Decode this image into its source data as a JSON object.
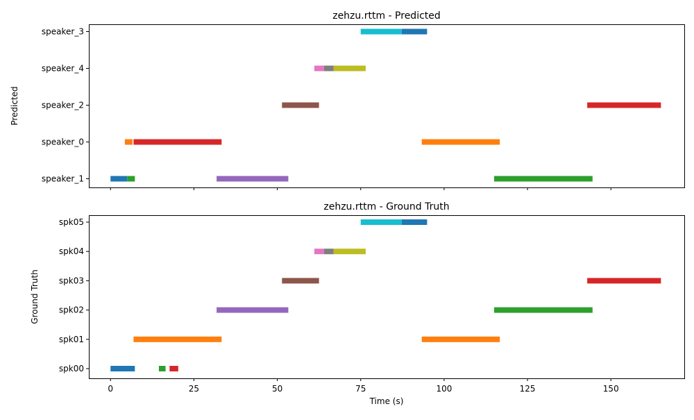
{
  "chart_data": [
    {
      "type": "timeline",
      "title": "zehzu.rttm - Predicted",
      "ylabel": "Predicted",
      "xlabel": "",
      "xlim": [
        -6.5,
        172
      ],
      "xticks": [
        0,
        25,
        50,
        75,
        100,
        125,
        150
      ],
      "show_xtick_labels": false,
      "grid": false,
      "rows": [
        "speaker_1",
        "speaker_0",
        "speaker_2",
        "speaker_4",
        "speaker_3"
      ],
      "segments": [
        {
          "row": "speaker_1",
          "start": 0.0,
          "end": 5.0,
          "color": "#1f77b4"
        },
        {
          "row": "speaker_1",
          "start": 5.0,
          "end": 7.3,
          "color": "#2ca02c"
        },
        {
          "row": "speaker_1",
          "start": 31.8,
          "end": 53.3,
          "color": "#9467bd"
        },
        {
          "row": "speaker_1",
          "start": 115.0,
          "end": 144.5,
          "color": "#2ca02c"
        },
        {
          "row": "speaker_0",
          "start": 4.3,
          "end": 6.6,
          "color": "#ff7f0e"
        },
        {
          "row": "speaker_0",
          "start": 6.9,
          "end": 33.3,
          "color": "#d62728"
        },
        {
          "row": "speaker_0",
          "start": 93.3,
          "end": 116.7,
          "color": "#ff7f0e"
        },
        {
          "row": "speaker_2",
          "start": 51.4,
          "end": 62.5,
          "color": "#8c564b"
        },
        {
          "row": "speaker_2",
          "start": 142.9,
          "end": 165.0,
          "color": "#d62728"
        },
        {
          "row": "speaker_4",
          "start": 61.1,
          "end": 64.0,
          "color": "#e377c2"
        },
        {
          "row": "speaker_4",
          "start": 64.0,
          "end": 66.9,
          "color": "#7f7f7f"
        },
        {
          "row": "speaker_4",
          "start": 66.9,
          "end": 76.5,
          "color": "#bcbd22"
        },
        {
          "row": "speaker_3",
          "start": 75.0,
          "end": 87.3,
          "color": "#17becf"
        },
        {
          "row": "speaker_3",
          "start": 87.3,
          "end": 94.9,
          "color": "#1f77b4"
        }
      ]
    },
    {
      "type": "timeline",
      "title": "zehzu.rttm - Ground Truth",
      "ylabel": "Ground Truth",
      "xlabel": "Time (s)",
      "xlim": [
        -6.5,
        172
      ],
      "xticks": [
        0,
        25,
        50,
        75,
        100,
        125,
        150
      ],
      "show_xtick_labels": true,
      "grid": false,
      "rows": [
        "spk00",
        "spk01",
        "spk02",
        "spk03",
        "spk04",
        "spk05"
      ],
      "segments": [
        {
          "row": "spk00",
          "start": 0.0,
          "end": 7.3,
          "color": "#1f77b4"
        },
        {
          "row": "spk00",
          "start": 14.5,
          "end": 16.5,
          "color": "#2ca02c"
        },
        {
          "row": "spk00",
          "start": 17.7,
          "end": 20.3,
          "color": "#d62728"
        },
        {
          "row": "spk01",
          "start": 6.9,
          "end": 33.3,
          "color": "#ff7f0e"
        },
        {
          "row": "spk01",
          "start": 93.3,
          "end": 116.7,
          "color": "#ff7f0e"
        },
        {
          "row": "spk02",
          "start": 31.8,
          "end": 53.3,
          "color": "#9467bd"
        },
        {
          "row": "spk02",
          "start": 115.0,
          "end": 144.5,
          "color": "#2ca02c"
        },
        {
          "row": "spk03",
          "start": 51.4,
          "end": 62.5,
          "color": "#8c564b"
        },
        {
          "row": "spk03",
          "start": 142.9,
          "end": 165.0,
          "color": "#d62728"
        },
        {
          "row": "spk04",
          "start": 61.1,
          "end": 64.0,
          "color": "#e377c2"
        },
        {
          "row": "spk04",
          "start": 64.0,
          "end": 66.9,
          "color": "#7f7f7f"
        },
        {
          "row": "spk04",
          "start": 66.9,
          "end": 76.5,
          "color": "#bcbd22"
        },
        {
          "row": "spk05",
          "start": 75.0,
          "end": 87.3,
          "color": "#17becf"
        },
        {
          "row": "spk05",
          "start": 87.3,
          "end": 94.9,
          "color": "#1f77b4"
        }
      ]
    }
  ]
}
